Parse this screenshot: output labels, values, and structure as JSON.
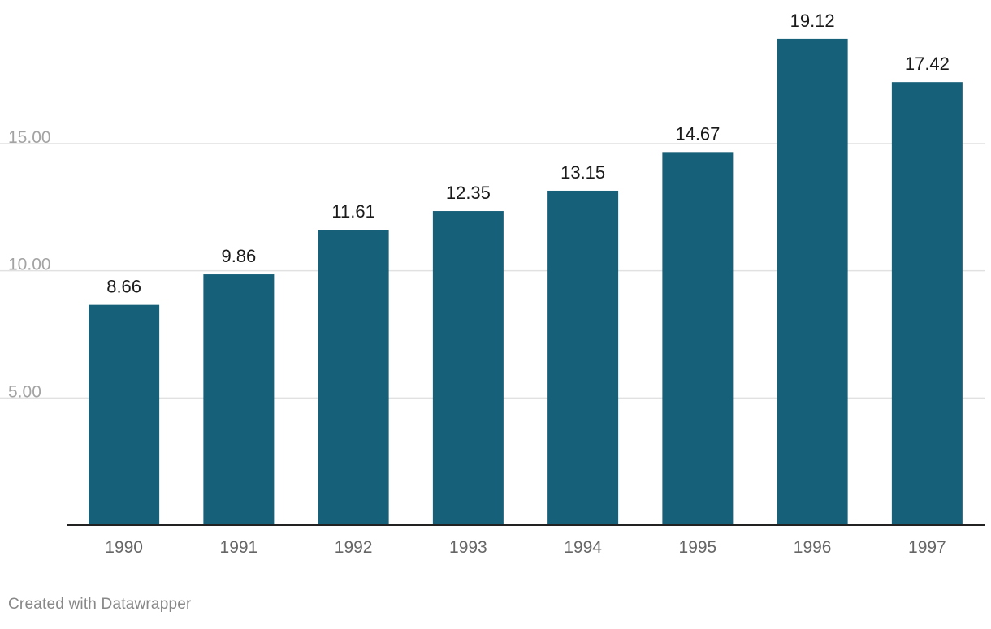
{
  "chart_data": {
    "type": "bar",
    "title": "",
    "xlabel": "",
    "ylabel": "",
    "categories": [
      "1990",
      "1991",
      "1992",
      "1993",
      "1994",
      "1995",
      "1996",
      "1997"
    ],
    "values": [
      8.66,
      9.86,
      11.61,
      12.35,
      13.15,
      14.67,
      19.12,
      17.42
    ],
    "value_labels": [
      "8.66",
      "9.86",
      "11.61",
      "12.35",
      "13.15",
      "14.67",
      "19.12",
      "17.42"
    ],
    "ylim": [
      0,
      20
    ],
    "y_ticks": [
      5,
      10,
      15
    ],
    "y_tick_labels": [
      "5.00",
      "10.00",
      "15.00"
    ],
    "grid": true,
    "legend": "none",
    "colors": {
      "bar": "#176079",
      "grid": "#e1e1e1",
      "baseline": "#222222",
      "tick_text": "#a3a3a3",
      "category_text": "#666666",
      "value_text": "#1a1a1a"
    }
  },
  "footer": {
    "credit": "Created with Datawrapper"
  }
}
